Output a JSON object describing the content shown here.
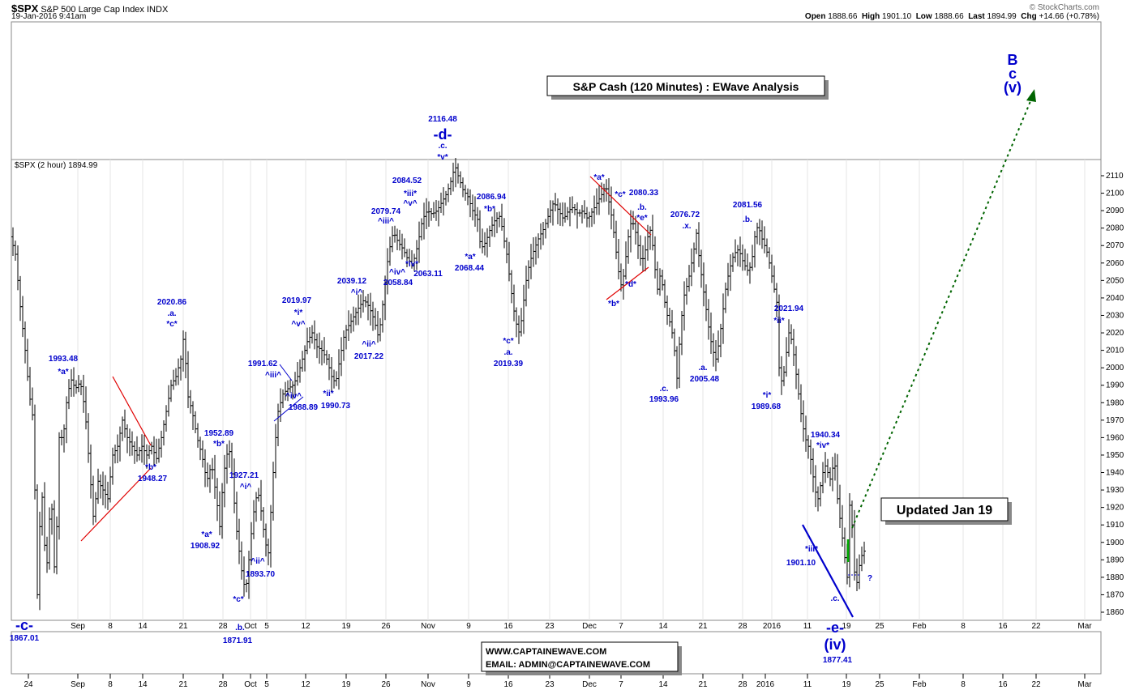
{
  "header": {
    "symbol": "$SPX",
    "name": "S&P 500 Large Cap Index",
    "exchange": "INDX",
    "datetime": "19-Jan-2016 9:41am",
    "brand": "© StockCharts.com",
    "ohlc": {
      "open_label": "Open",
      "open": "1888.66",
      "high_label": "High",
      "high": "1901.10",
      "low_label": "Low",
      "low": "1888.66",
      "last_label": "Last",
      "last": "1894.99",
      "chg_label": "Chg",
      "chg": "+14.66 (+0.78%)"
    },
    "panel_label": "$SPX (2 hour) 1894.99"
  },
  "boxes": {
    "title": "S&P Cash (120 Minutes) : EWave Analysis",
    "updated": "Updated Jan 19",
    "website": "WWW.CAPTAINEWAVE.COM",
    "email": "EMAIL: ADMIN@CAPTAINEWAVE.COM"
  },
  "target_label": {
    "l1": "B",
    "l2": "c",
    "l3": "(v)"
  },
  "question_mark": "?",
  "chart_data": {
    "type": "ohlc",
    "y_ticks": [
      1860,
      1870,
      1880,
      1890,
      1900,
      1910,
      1920,
      1930,
      1940,
      1950,
      1960,
      1970,
      1980,
      1990,
      2000,
      2010,
      2020,
      2030,
      2040,
      2050,
      2060,
      2070,
      2080,
      2090,
      2100,
      2110
    ],
    "ylim": [
      1853,
      2115
    ],
    "upper_axis_labels": [
      "Sep",
      "8",
      "14",
      "21",
      "28",
      "Oct",
      "5",
      "12",
      "19",
      "26",
      "Nov",
      "9",
      "16",
      "23",
      "Dec",
      "7",
      "14",
      "21",
      "28",
      "2016",
      "11",
      "19",
      "25",
      "Feb",
      "8",
      "16",
      "22",
      "Mar"
    ],
    "lower_axis_labels": [
      "24",
      "Sep",
      "8",
      "14",
      "21",
      "28",
      "Oct",
      "5",
      "12",
      "19",
      "26",
      "Nov",
      "9",
      "16",
      "23",
      "Dec",
      "7",
      "14",
      "21",
      "28",
      "2016",
      "11",
      "19",
      "25",
      "Feb",
      "8",
      "16",
      "22",
      "Mar"
    ],
    "price_path": [
      [
        0,
        2075
      ],
      [
        6,
        2065
      ],
      [
        12,
        2035
      ],
      [
        18,
        2010
      ],
      [
        23,
        1985
      ],
      [
        28,
        1970
      ],
      [
        33,
        1870
      ],
      [
        38,
        1935
      ],
      [
        44,
        1880
      ],
      [
        50,
        1930
      ],
      [
        55,
        1875
      ],
      [
        60,
        1960
      ],
      [
        65,
        1960
      ],
      [
        70,
        1985
      ],
      [
        75,
        1993
      ],
      [
        80,
        1988
      ],
      [
        86,
        1992
      ],
      [
        92,
        1975
      ],
      [
        97,
        1945
      ],
      [
        102,
        1915
      ],
      [
        108,
        1935
      ],
      [
        114,
        1930
      ],
      [
        120,
        1925
      ],
      [
        126,
        1950
      ],
      [
        132,
        1955
      ],
      [
        138,
        1970
      ],
      [
        144,
        1960
      ],
      [
        150,
        1955
      ],
      [
        156,
        1950
      ],
      [
        162,
        1955
      ],
      [
        168,
        1950
      ],
      [
        174,
        1955
      ],
      [
        180,
        1948
      ],
      [
        186,
        1960
      ],
      [
        192,
        1975
      ],
      [
        198,
        1990
      ],
      [
        204,
        1995
      ],
      [
        210,
        2005
      ],
      [
        214,
        2020
      ],
      [
        218,
        1985
      ],
      [
        224,
        1975
      ],
      [
        230,
        1960
      ],
      [
        236,
        1950
      ],
      [
        242,
        1935
      ],
      [
        248,
        1945
      ],
      [
        254,
        1925
      ],
      [
        258,
        1909
      ],
      [
        262,
        1935
      ],
      [
        266,
        1950
      ],
      [
        270,
        1952
      ],
      [
        274,
        1935
      ],
      [
        278,
        1910
      ],
      [
        282,
        1895
      ],
      [
        286,
        1880
      ],
      [
        290,
        1872
      ],
      [
        294,
        1890
      ],
      [
        298,
        1910
      ],
      [
        302,
        1925
      ],
      [
        306,
        1927
      ],
      [
        310,
        1915
      ],
      [
        314,
        1900
      ],
      [
        318,
        1894
      ],
      [
        322,
        1925
      ],
      [
        326,
        1955
      ],
      [
        330,
        1975
      ],
      [
        336,
        1985
      ],
      [
        342,
        1988
      ],
      [
        348,
        1990
      ],
      [
        354,
        1995
      ],
      [
        360,
        2005
      ],
      [
        366,
        2015
      ],
      [
        372,
        2020
      ],
      [
        378,
        2012
      ],
      [
        384,
        2010
      ],
      [
        390,
        2005
      ],
      [
        396,
        1995
      ],
      [
        401,
        1991
      ],
      [
        406,
        2005
      ],
      [
        412,
        2020
      ],
      [
        418,
        2025
      ],
      [
        424,
        2030
      ],
      [
        430,
        2035
      ],
      [
        436,
        2039
      ],
      [
        442,
        2035
      ],
      [
        448,
        2028
      ],
      [
        454,
        2017
      ],
      [
        460,
        2040
      ],
      [
        466,
        2065
      ],
      [
        472,
        2078
      ],
      [
        478,
        2072
      ],
      [
        484,
        2068
      ],
      [
        490,
        2062
      ],
      [
        496,
        2059
      ],
      [
        502,
        2070
      ],
      [
        508,
        2085
      ],
      [
        514,
        2090
      ],
      [
        520,
        2088
      ],
      [
        526,
        2090
      ],
      [
        532,
        2095
      ],
      [
        538,
        2100
      ],
      [
        544,
        2108
      ],
      [
        548,
        2116
      ],
      [
        552,
        2110
      ],
      [
        558,
        2102
      ],
      [
        564,
        2098
      ],
      [
        570,
        2090
      ],
      [
        576,
        2085
      ],
      [
        580,
        2068
      ],
      [
        586,
        2072
      ],
      [
        592,
        2080
      ],
      [
        598,
        2085
      ],
      [
        604,
        2087
      ],
      [
        608,
        2075
      ],
      [
        612,
        2065
      ],
      [
        616,
        2050
      ],
      [
        620,
        2035
      ],
      [
        624,
        2025
      ],
      [
        628,
        2019
      ],
      [
        632,
        2035
      ],
      [
        636,
        2050
      ],
      [
        640,
        2060
      ],
      [
        646,
        2068
      ],
      [
        652,
        2075
      ],
      [
        658,
        2080
      ],
      [
        664,
        2088
      ],
      [
        670,
        2095
      ],
      [
        676,
        2090
      ],
      [
        682,
        2085
      ],
      [
        688,
        2090
      ],
      [
        694,
        2092
      ],
      [
        700,
        2088
      ],
      [
        706,
        2090
      ],
      [
        712,
        2085
      ],
      [
        718,
        2090
      ],
      [
        724,
        2095
      ],
      [
        730,
        2100
      ],
      [
        734,
        2105
      ],
      [
        738,
        2095
      ],
      [
        742,
        2085
      ],
      [
        746,
        2070
      ],
      [
        750,
        2055
      ],
      [
        754,
        2045
      ],
      [
        758,
        2060
      ],
      [
        762,
        2075
      ],
      [
        766,
        2085
      ],
      [
        770,
        2080
      ],
      [
        774,
        2070
      ],
      [
        778,
        2060
      ],
      [
        782,
        2065
      ],
      [
        786,
        2075
      ],
      [
        790,
        2080
      ],
      [
        794,
        2060
      ],
      [
        798,
        2045
      ],
      [
        802,
        2055
      ],
      [
        806,
        2040
      ],
      [
        810,
        2030
      ],
      [
        814,
        2025
      ],
      [
        818,
        2015
      ],
      [
        822,
        1994
      ],
      [
        826,
        2020
      ],
      [
        830,
        2040
      ],
      [
        836,
        2050
      ],
      [
        842,
        2065
      ],
      [
        846,
        2077
      ],
      [
        850,
        2060
      ],
      [
        856,
        2040
      ],
      [
        862,
        2020
      ],
      [
        866,
        2010
      ],
      [
        870,
        2005
      ],
      [
        874,
        2015
      ],
      [
        878,
        2030
      ],
      [
        882,
        2045
      ],
      [
        886,
        2055
      ],
      [
        892,
        2065
      ],
      [
        898,
        2068
      ],
      [
        904,
        2060
      ],
      [
        910,
        2055
      ],
      [
        914,
        2060
      ],
      [
        918,
        2075
      ],
      [
        922,
        2082
      ],
      [
        926,
        2075
      ],
      [
        930,
        2070
      ],
      [
        934,
        2065
      ],
      [
        938,
        2055
      ],
      [
        942,
        2045
      ],
      [
        946,
        2035
      ],
      [
        948,
        2000
      ],
      [
        952,
        1990
      ],
      [
        956,
        2005
      ],
      [
        960,
        2020
      ],
      [
        964,
        2015
      ],
      [
        968,
        2000
      ],
      [
        972,
        1985
      ],
      [
        976,
        1970
      ],
      [
        980,
        1960
      ],
      [
        984,
        1955
      ],
      [
        988,
        1945
      ],
      [
        992,
        1930
      ],
      [
        996,
        1925
      ],
      [
        1000,
        1935
      ],
      [
        1004,
        1945
      ],
      [
        1008,
        1940
      ],
      [
        1012,
        1935
      ],
      [
        1016,
        1950
      ],
      [
        1020,
        1925
      ],
      [
        1024,
        1910
      ],
      [
        1028,
        1895
      ],
      [
        1032,
        1880
      ],
      [
        1036,
        1935
      ],
      [
        1040,
        1885
      ],
      [
        1044,
        1877
      ],
      [
        1048,
        1890
      ],
      [
        1052,
        1895
      ]
    ],
    "annotations": [
      {
        "text": "1993.48",
        "x": 78,
        "y": 446
      },
      {
        "text": "*a*",
        "x": 78,
        "y": 462
      },
      {
        "text": "2020.86",
        "x": 212,
        "y": 376
      },
      {
        "text": ".a.",
        "x": 212,
        "y": 390
      },
      {
        "text": "*c*",
        "x": 212,
        "y": 403
      },
      {
        "text": "*b*",
        "x": 186,
        "y": 580
      },
      {
        "text": "1948.27",
        "x": 188,
        "y": 594
      },
      {
        "text": "1952.89",
        "x": 270,
        "y": 538
      },
      {
        "text": "*b*",
        "x": 270,
        "y": 551
      },
      {
        "text": "*a*",
        "x": 255,
        "y": 663
      },
      {
        "text": "1908.92",
        "x": 253,
        "y": 677
      },
      {
        "text": "1927.21",
        "x": 301,
        "y": 590
      },
      {
        "text": "^i^",
        "x": 303,
        "y": 604
      },
      {
        "text": "^ii^",
        "x": 318,
        "y": 696
      },
      {
        "text": "1893.70",
        "x": 321,
        "y": 712
      },
      {
        "text": "*c*",
        "x": 294,
        "y": 743
      },
      {
        "text": "1991.62",
        "x": 324,
        "y": 452
      },
      {
        "text": "^iii^",
        "x": 337,
        "y": 466
      },
      {
        "text": "^iv^",
        "x": 362,
        "y": 492
      },
      {
        "text": "1988.89",
        "x": 374,
        "y": 506
      },
      {
        "text": "2019.97",
        "x": 366,
        "y": 374
      },
      {
        "text": "*i*",
        "x": 368,
        "y": 389
      },
      {
        "text": "^v^",
        "x": 368,
        "y": 403
      },
      {
        "text": "*ii*",
        "x": 405,
        "y": 489
      },
      {
        "text": "1990.73",
        "x": 414,
        "y": 504
      },
      {
        "text": "2039.12",
        "x": 434,
        "y": 350
      },
      {
        "text": "^i^",
        "x": 440,
        "y": 364
      },
      {
        "text": "^ii^",
        "x": 455,
        "y": 428
      },
      {
        "text": "2017.22",
        "x": 455,
        "y": 443
      },
      {
        "text": "2079.74",
        "x": 476,
        "y": 264
      },
      {
        "text": "^iii^",
        "x": 476,
        "y": 276
      },
      {
        "text": "*iii*",
        "x": 506,
        "y": 242
      },
      {
        "text": "^v^",
        "x": 506,
        "y": 254
      },
      {
        "text": "2084.52",
        "x": 502,
        "y": 226
      },
      {
        "text": "*iv*",
        "x": 508,
        "y": 329
      },
      {
        "text": "^iv^",
        "x": 490,
        "y": 339
      },
      {
        "text": "2058.84",
        "x": 491,
        "y": 352
      },
      {
        "text": "2063.11",
        "x": 528,
        "y": 341
      },
      {
        "text": "2116.48",
        "x": 546,
        "y": 150
      },
      {
        "text": ".c.",
        "x": 546,
        "y": 183
      },
      {
        "text": "*v*",
        "x": 546,
        "y": 197
      },
      {
        "text": "2086.94",
        "x": 606,
        "y": 246
      },
      {
        "text": "*b*",
        "x": 604,
        "y": 261
      },
      {
        "text": "*a*",
        "x": 580,
        "y": 320
      },
      {
        "text": "2068.44",
        "x": 579,
        "y": 334
      },
      {
        "text": "*c*",
        "x": 627,
        "y": 424
      },
      {
        "text": ".a.",
        "x": 627,
        "y": 438
      },
      {
        "text": "2019.39",
        "x": 627,
        "y": 452
      },
      {
        "text": "*a*",
        "x": 739,
        "y": 222
      },
      {
        "text": "*c*",
        "x": 765,
        "y": 243
      },
      {
        "text": "2080.33",
        "x": 794,
        "y": 241
      },
      {
        "text": ".b.",
        "x": 792,
        "y": 259
      },
      {
        "text": "*e*",
        "x": 792,
        "y": 272
      },
      {
        "text": "*d*",
        "x": 778,
        "y": 354
      },
      {
        "text": "*b*",
        "x": 757,
        "y": 378
      },
      {
        "text": "2076.72",
        "x": 845,
        "y": 268
      },
      {
        "text": ".x.",
        "x": 847,
        "y": 282
      },
      {
        "text": ".c.",
        "x": 819,
        "y": 483
      },
      {
        "text": "1993.96",
        "x": 819,
        "y": 496
      },
      {
        "text": ".a.",
        "x": 867,
        "y": 457
      },
      {
        "text": "2005.48",
        "x": 869,
        "y": 471
      },
      {
        "text": "2081.56",
        "x": 922,
        "y": 256
      },
      {
        "text": ".b.",
        "x": 922,
        "y": 274
      },
      {
        "text": "2021.94",
        "x": 973,
        "y": 384
      },
      {
        "text": "*ii*",
        "x": 961,
        "y": 399
      },
      {
        "text": "*i*",
        "x": 946,
        "y": 491
      },
      {
        "text": "1989.68",
        "x": 945,
        "y": 505
      },
      {
        "text": "1940.34",
        "x": 1018,
        "y": 540
      },
      {
        "text": "*iv*",
        "x": 1015,
        "y": 553
      },
      {
        "text": "*iii*",
        "x": 1001,
        "y": 681
      },
      {
        "text": "1901.10",
        "x": 988,
        "y": 698
      },
      {
        "text": ".c.",
        "x": 1030,
        "y": 742
      },
      {
        "text": "1867.01",
        "x": 30,
        "y": 791
      },
      {
        "text": ".b.",
        "x": 296,
        "y": 778
      },
      {
        "text": "1871.91",
        "x": 293,
        "y": 794
      },
      {
        "text": "1877.41",
        "x": 1033,
        "y": 818
      }
    ],
    "big_labels": [
      {
        "text": "-d-",
        "x": 546,
        "y": 172
      },
      {
        "text": "-c-",
        "x": 30,
        "y": 778
      },
      {
        "text": "-e-",
        "x": 1030,
        "y": 781
      },
      {
        "text": "(iv)",
        "x": 1030,
        "y": 802
      }
    ]
  }
}
